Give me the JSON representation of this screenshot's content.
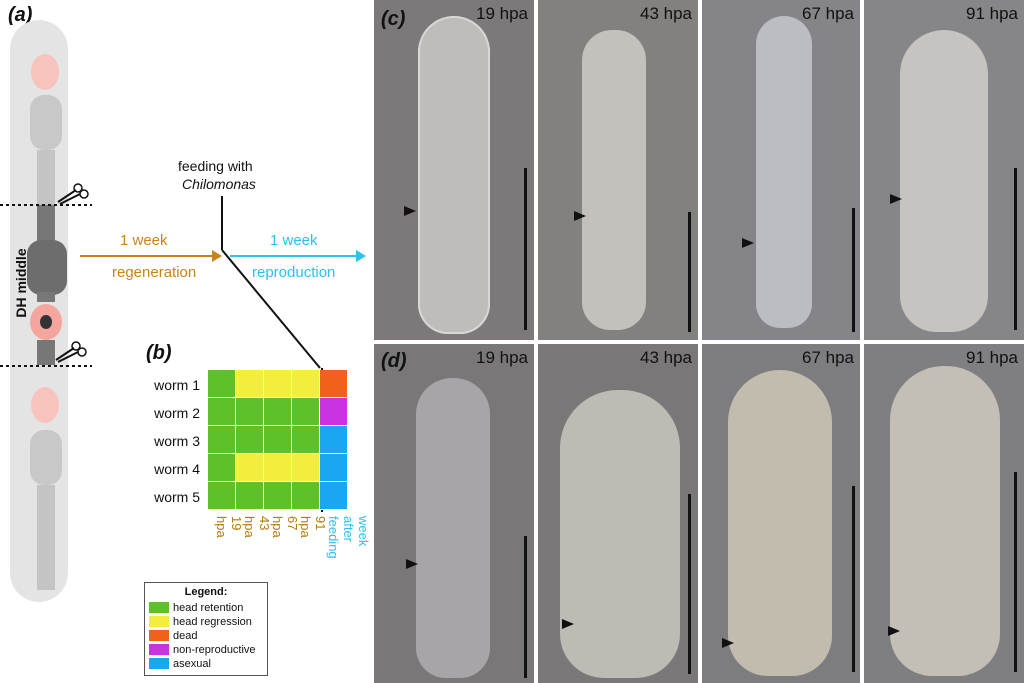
{
  "panels": {
    "a": "(a)",
    "b": "(b)",
    "c": "(c)",
    "d": "(d)"
  },
  "panel_a": {
    "side_label": "DH middle",
    "feeding_line1": "feeding with",
    "feeding_line2": "Chilomonas",
    "arrow1_top": "1 week",
    "arrow1_bottom": "regeneration",
    "arrow2_top": "1 week",
    "arrow2_bottom": "reproduction"
  },
  "grid": {
    "rows": [
      "worm 1",
      "worm 2",
      "worm 3",
      "worm 4",
      "worm 5"
    ],
    "columns": [
      "19 hpa",
      "43 hpa",
      "67 hpa",
      "91 hpa"
    ],
    "last_column": "week after feeding",
    "cells": [
      [
        "green",
        "yellow",
        "yellow",
        "yellow",
        "orange"
      ],
      [
        "green",
        "green",
        "green",
        "green",
        "purple"
      ],
      [
        "green",
        "green",
        "green",
        "green",
        "blue"
      ],
      [
        "green",
        "yellow",
        "yellow",
        "yellow",
        "blue"
      ],
      [
        "green",
        "green",
        "green",
        "green",
        "blue"
      ]
    ]
  },
  "legend": {
    "title": "Legend:",
    "items": [
      {
        "label": "head retention",
        "color": "#5ec12a"
      },
      {
        "label": "head regression",
        "color": "#f2ef3c"
      },
      {
        "label": "dead",
        "color": "#f0611c"
      },
      {
        "label": "non-reproductive",
        "color": "#c832e0"
      },
      {
        "label": "asexual",
        "color": "#1aa7f0"
      }
    ]
  },
  "colors": {
    "green": "#5ec12a",
    "yellow": "#f2ef3c",
    "orange": "#f0611c",
    "purple": "#c832e0",
    "blue": "#1aa7f0",
    "regeneration": "#c8841a",
    "reproduction": "#2fc0ee"
  },
  "row_c": [
    "19 hpa",
    "43 hpa",
    "67 hpa",
    "91 hpa"
  ],
  "row_d": [
    "19 hpa",
    "43 hpa",
    "67 hpa",
    "91 hpa"
  ]
}
